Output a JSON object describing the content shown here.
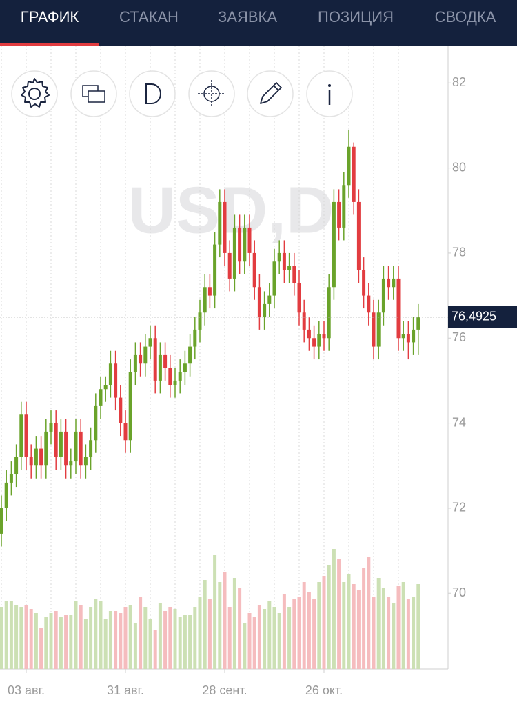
{
  "tabs": [
    "ГРАФИК",
    "СТАКАН",
    "ЗАЯВКА",
    "ПОЗИЦИЯ",
    "СВОДКА"
  ],
  "active_tab": 0,
  "chart_data": {
    "type": "candlestick",
    "watermark": "USD,D",
    "categories": [
      null,
      null,
      null,
      null,
      null,
      "03 авг.",
      null,
      null,
      null,
      null,
      null,
      null,
      null,
      null,
      null,
      null,
      null,
      null,
      null,
      null,
      null,
      null,
      null,
      null,
      null,
      "31 авг.",
      null,
      null,
      null,
      null,
      null,
      null,
      null,
      null,
      null,
      null,
      null,
      null,
      null,
      null,
      null,
      null,
      null,
      null,
      null,
      "28 сент.",
      null,
      null,
      null,
      null,
      null,
      null,
      null,
      null,
      null,
      null,
      null,
      null,
      null,
      null,
      null,
      null,
      null,
      null,
      null,
      "26 окт.",
      null,
      null,
      null,
      null,
      null,
      null,
      null,
      null,
      null,
      null,
      null,
      null,
      null,
      null,
      null,
      null,
      null,
      null,
      null
    ],
    "open": [
      71.4,
      72.0,
      72.6,
      72.8,
      73.2,
      74.2,
      73.2,
      73.0,
      73.4,
      73.0,
      73.8,
      74.0,
      73.2,
      73.8,
      73.0,
      73.1,
      73.8,
      73.0,
      73.2,
      73.6,
      74.4,
      74.8,
      74.9,
      75.4,
      74.6,
      74.0,
      73.6,
      75.2,
      75.6,
      75.4,
      75.8,
      76.0,
      75.0,
      75.6,
      75.3,
      74.9,
      75.0,
      75.2,
      75.4,
      75.8,
      76.2,
      76.6,
      77.2,
      77.0,
      78.2,
      79.2,
      78.0,
      77.4,
      78.6,
      77.8,
      78.6,
      78.0,
      77.2,
      76.5,
      76.8,
      77.0,
      77.8,
      78.0,
      77.6,
      77.7,
      77.3,
      76.6,
      76.2,
      76.0,
      75.8,
      76.1,
      76.0,
      77.2,
      79.2,
      78.6,
      79.6,
      80.5,
      79.2,
      77.6,
      77.0,
      76.6,
      75.8,
      76.6,
      77.4,
      77.2,
      77.4,
      76.0,
      76.1,
      75.9,
      76.2
    ],
    "high": [
      72.3,
      72.9,
      73.1,
      73.5,
      74.5,
      74.5,
      73.5,
      73.7,
      73.7,
      74.1,
      74.3,
      74.3,
      74.1,
      74.1,
      73.4,
      74.1,
      74.1,
      73.5,
      73.9,
      74.7,
      75.1,
      75.1,
      75.7,
      75.7,
      74.9,
      74.3,
      75.5,
      75.9,
      75.9,
      76.1,
      76.3,
      76.3,
      75.9,
      75.9,
      75.6,
      75.3,
      75.5,
      75.7,
      76.1,
      76.5,
      76.9,
      77.5,
      77.5,
      78.5,
      79.5,
      79.5,
      78.3,
      78.9,
      78.9,
      78.9,
      78.9,
      78.3,
      77.5,
      77.1,
      77.3,
      78.1,
      78.3,
      78.3,
      78.0,
      78.0,
      77.6,
      76.9,
      76.5,
      76.3,
      76.4,
      76.4,
      77.5,
      79.5,
      79.5,
      79.9,
      80.9,
      80.6,
      79.5,
      77.9,
      77.3,
      76.9,
      76.9,
      77.7,
      77.7,
      77.7,
      77.7,
      76.4,
      76.4,
      76.5,
      76.8
    ],
    "low": [
      71.1,
      71.7,
      72.3,
      72.5,
      72.9,
      72.9,
      72.7,
      72.7,
      72.7,
      72.7,
      73.5,
      72.9,
      72.9,
      72.7,
      72.7,
      72.8,
      72.7,
      72.7,
      72.9,
      73.3,
      74.1,
      74.5,
      74.6,
      74.3,
      73.7,
      73.3,
      73.3,
      74.9,
      75.1,
      75.1,
      75.5,
      74.7,
      74.7,
      75.0,
      74.6,
      74.6,
      74.7,
      74.9,
      75.1,
      75.5,
      75.9,
      76.3,
      76.7,
      76.7,
      77.9,
      77.7,
      77.1,
      77.1,
      77.5,
      77.5,
      77.7,
      76.9,
      76.2,
      76.2,
      76.5,
      76.7,
      77.5,
      77.3,
      77.3,
      77.0,
      76.3,
      75.9,
      75.7,
      75.5,
      75.5,
      75.7,
      75.7,
      76.9,
      78.3,
      78.3,
      79.3,
      78.9,
      77.3,
      76.7,
      76.3,
      75.5,
      75.5,
      76.3,
      76.9,
      76.9,
      75.7,
      75.7,
      75.5,
      75.6,
      75.6
    ],
    "close": [
      72.0,
      72.6,
      72.8,
      73.2,
      74.2,
      73.2,
      73.0,
      73.4,
      73.0,
      73.8,
      74.0,
      73.2,
      73.8,
      73.0,
      73.1,
      73.8,
      73.0,
      73.2,
      73.6,
      74.4,
      74.8,
      74.9,
      75.4,
      74.6,
      74.0,
      73.6,
      75.2,
      75.6,
      75.4,
      75.8,
      76.0,
      75.0,
      75.6,
      75.3,
      74.9,
      75.0,
      75.2,
      75.4,
      75.8,
      76.2,
      76.6,
      77.2,
      77.0,
      78.2,
      79.2,
      78.0,
      77.4,
      78.6,
      77.8,
      78.6,
      78.0,
      77.2,
      76.5,
      76.8,
      77.0,
      77.8,
      78.0,
      77.6,
      77.7,
      77.3,
      76.6,
      76.2,
      76.0,
      75.8,
      76.1,
      76.0,
      77.2,
      79.2,
      78.6,
      79.6,
      80.5,
      79.2,
      77.6,
      77.0,
      76.6,
      75.8,
      76.6,
      77.4,
      77.2,
      77.4,
      76.0,
      76.1,
      75.9,
      76.2,
      76.5
    ],
    "volume": [
      30,
      33,
      33,
      31,
      30,
      31,
      29,
      27,
      20,
      25,
      27,
      28,
      25,
      26,
      26,
      33,
      31,
      24,
      30,
      34,
      33,
      24,
      28,
      28,
      27,
      30,
      31,
      22,
      35,
      30,
      24,
      19,
      32,
      28,
      30,
      29,
      25,
      26,
      26,
      30,
      35,
      43,
      34,
      55,
      42,
      47,
      30,
      44,
      39,
      22,
      27,
      25,
      31,
      29,
      33,
      30,
      27,
      36,
      30,
      34,
      35,
      42,
      37,
      34,
      42,
      45,
      50,
      58,
      53,
      42,
      46,
      41,
      38,
      49,
      54,
      35,
      44,
      39,
      35,
      32,
      40,
      42,
      34,
      35,
      41
    ],
    "up_color": "#6aa32a",
    "down_color": "#e23c40",
    "volume_up_color": "#cce0b4",
    "volume_down_color": "#f5bcbe",
    "ylim": [
      68.22,
      82.88
    ],
    "yticks": [
      70,
      72,
      74,
      76,
      78,
      80,
      82
    ],
    "vlim": [
      0,
      60
    ],
    "current_price": {
      "value": 76.4925,
      "label": "76,4925"
    },
    "grid": "x"
  }
}
